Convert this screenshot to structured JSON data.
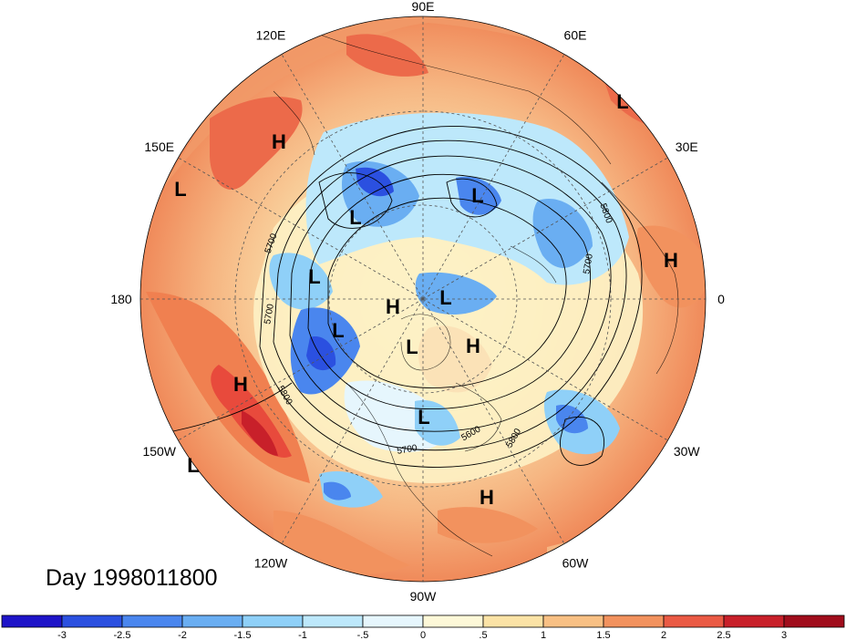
{
  "title": "Day 1998011800",
  "map": {
    "projection": "north polar stereographic",
    "center_lon": "90W at bottom",
    "lon_labels": [
      {
        "text": "90E",
        "ang": 90
      },
      {
        "text": "60E",
        "ang": 60
      },
      {
        "text": "30E",
        "ang": 30
      },
      {
        "text": "0",
        "ang": 0
      },
      {
        "text": "30W",
        "ang": -30
      },
      {
        "text": "60W",
        "ang": -60
      },
      {
        "text": "90W",
        "ang": -90
      },
      {
        "text": "120W",
        "ang": -120
      },
      {
        "text": "150W",
        "ang": -150
      },
      {
        "text": "180",
        "ang": 180
      },
      {
        "text": "150E",
        "ang": 150
      },
      {
        "text": "120E",
        "ang": 120
      }
    ],
    "pressure_centers": [
      {
        "type": "L",
        "pos": [
          683,
          111
        ]
      },
      {
        "type": "H",
        "pos": [
          306,
          155
        ]
      },
      {
        "type": "L",
        "pos": [
          198,
          207
        ]
      },
      {
        "type": "L",
        "pos": [
          524,
          214
        ]
      },
      {
        "type": "L",
        "pos": [
          390,
          238
        ]
      },
      {
        "type": "H",
        "pos": [
          736,
          285
        ]
      },
      {
        "type": "L",
        "pos": [
          345,
          303
        ]
      },
      {
        "type": "L",
        "pos": [
          489,
          326
        ]
      },
      {
        "type": "H",
        "pos": [
          431,
          336
        ]
      },
      {
        "type": "L",
        "pos": [
          371,
          362
        ]
      },
      {
        "type": "L",
        "pos": [
          452,
          380
        ]
      },
      {
        "type": "H",
        "pos": [
          519,
          379
        ]
      },
      {
        "type": "H",
        "pos": [
          264,
          421
        ]
      },
      {
        "type": "L",
        "pos": [
          465,
          457
        ]
      },
      {
        "type": "L",
        "pos": [
          212,
          510
        ]
      },
      {
        "type": "H",
        "pos": [
          534,
          545
        ]
      }
    ],
    "contour_labels": [
      "5700",
      "5700",
      "5800",
      "5800",
      "5700",
      "5600",
      "5800",
      "5700"
    ]
  },
  "colorbar": {
    "ticks": [
      "-3",
      "-2.5",
      "-2",
      "-1.5",
      "-1",
      "-.5",
      "0",
      ".5",
      "1",
      "1.5",
      "2",
      "2.5",
      "3"
    ],
    "colors": [
      "#1e14c8",
      "#2b50e0",
      "#4a86ee",
      "#6aaef2",
      "#8fd0f8",
      "#bde8fb",
      "#e6f6fd",
      "#fdf8d8",
      "#fbe3a6",
      "#f8c084",
      "#f2925e",
      "#ea5a44",
      "#c8202a",
      "#a00d1c"
    ]
  }
}
